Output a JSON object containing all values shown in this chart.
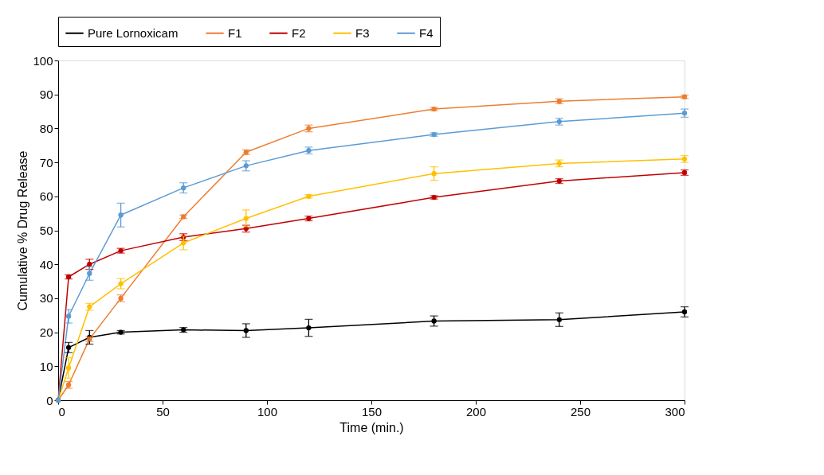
{
  "chart_data": {
    "type": "line",
    "xlabel": "Time (min.)",
    "ylabel": "Cumulative % Drug Release",
    "x": [
      0,
      5,
      15,
      30,
      60,
      90,
      120,
      180,
      240,
      300
    ],
    "series": [
      {
        "name": "Pure Lornoxicam",
        "color": "#000000",
        "values": [
          0,
          15.5,
          18.5,
          20,
          20.7,
          20.5,
          21.3,
          23.3,
          23.7,
          26
        ],
        "errors": [
          null,
          1.5,
          2,
          0.5,
          0.7,
          2,
          2.5,
          1.5,
          2,
          1.5
        ]
      },
      {
        "name": "F1",
        "color": "#ed7d31",
        "values": [
          0,
          4.5,
          18,
          30,
          54,
          73,
          80,
          85.7,
          88,
          89.3
        ],
        "errors": [
          null,
          1,
          0.7,
          1,
          0.5,
          0.7,
          1,
          0.5,
          0.7,
          0.5
        ]
      },
      {
        "name": "F2",
        "color": "#c00000",
        "values": [
          0,
          36.3,
          40,
          44,
          48,
          50.5,
          53.5,
          59.7,
          64.5,
          67
        ],
        "errors": [
          null,
          0.6,
          1.5,
          0.7,
          1,
          1,
          0.7,
          0.5,
          0.7,
          0.8
        ]
      },
      {
        "name": "F3",
        "color": "#ffc000",
        "values": [
          0,
          9.5,
          27.5,
          34.3,
          46.3,
          53.5,
          60,
          66.7,
          69.7,
          71
        ],
        "errors": [
          null,
          3,
          1,
          1.5,
          2,
          2.5,
          0.5,
          2,
          1,
          1
        ]
      },
      {
        "name": "F4",
        "color": "#5b9bd5",
        "values": [
          0,
          24.7,
          37.3,
          54.5,
          62.5,
          69,
          73.5,
          78.2,
          82,
          84.5
        ],
        "errors": [
          null,
          2,
          2,
          3.5,
          1.5,
          1.5,
          1,
          0.5,
          1,
          1.2
        ]
      }
    ],
    "xlim": [
      0,
      300
    ],
    "xticks": [
      0,
      50,
      100,
      150,
      200,
      250,
      300
    ],
    "ylim": [
      0,
      100
    ],
    "yticks": [
      0,
      10,
      20,
      30,
      40,
      50,
      60,
      70,
      80,
      90,
      100
    ],
    "grid": false,
    "legend": "top",
    "marker": "circle",
    "line_style": "solid"
  }
}
